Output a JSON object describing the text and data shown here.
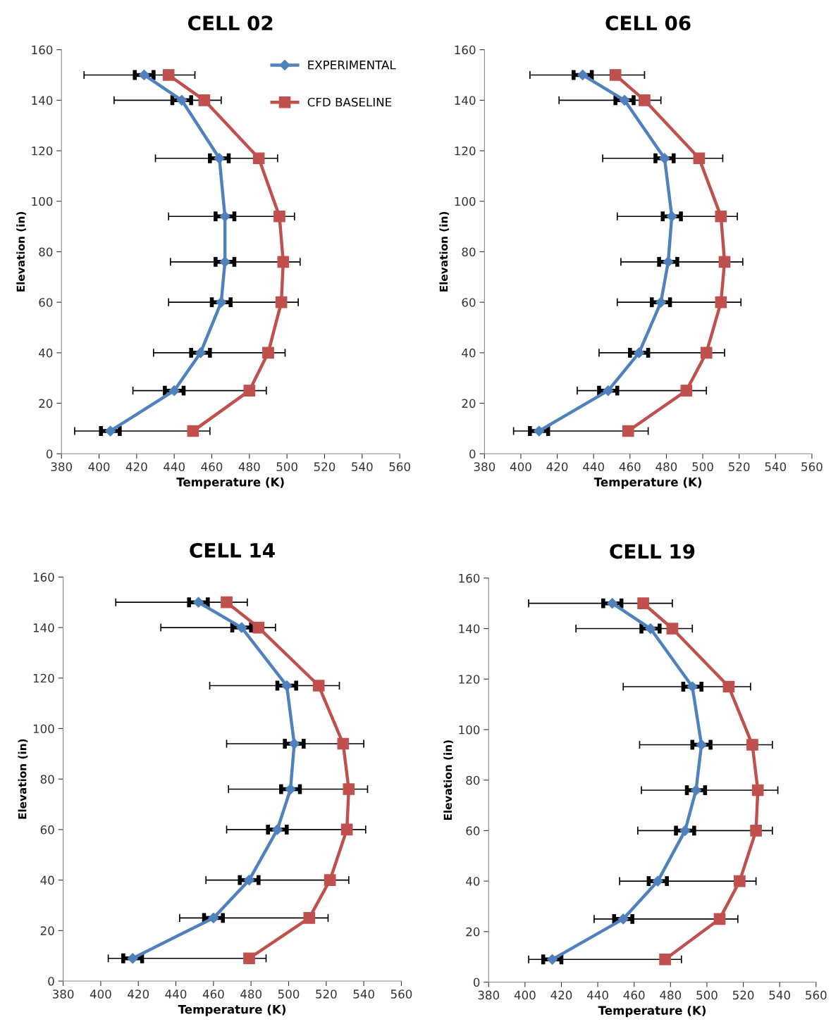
{
  "chart_data": [
    {
      "type": "line",
      "title": "CELL 02",
      "xlabel": "Temperature (K)",
      "ylabel": "Elevation (in)",
      "xlim": [
        380,
        560
      ],
      "xticks": [
        380,
        400,
        420,
        440,
        460,
        480,
        500,
        520,
        540,
        560
      ],
      "ylim": [
        0,
        160
      ],
      "yticks": [
        0,
        20,
        40,
        60,
        80,
        100,
        120,
        140,
        160
      ],
      "grid": false,
      "legend": "top right",
      "line_style": "solid",
      "series": [
        {
          "name": "EXPERIMENTAL",
          "color": "#4f81bd",
          "marker": "diamond",
          "x": [
            424,
            444,
            464,
            467,
            467,
            465,
            454,
            440,
            406
          ],
          "values": [
            150,
            140,
            117,
            94,
            76,
            60,
            40,
            25,
            9
          ],
          "xerrors": [
            5,
            5,
            5,
            5,
            5,
            5,
            5,
            5,
            5
          ]
        },
        {
          "name": "CFD BASELINE",
          "color": "#c0504d",
          "marker": "square",
          "x": [
            437,
            456,
            485,
            496,
            498,
            497,
            490,
            480,
            450
          ],
          "values": [
            150,
            140,
            117,
            94,
            76,
            60,
            40,
            25,
            9
          ],
          "xerrors": [
            [
              392,
              451
            ],
            [
              408,
              465
            ],
            [
              430,
              495
            ],
            [
              437,
              504
            ],
            [
              438,
              507
            ],
            [
              437,
              506
            ],
            [
              429,
              499
            ],
            [
              418,
              489
            ],
            [
              387,
              459
            ]
          ]
        }
      ]
    },
    {
      "type": "line",
      "title": "CELL 06",
      "xlabel": "Temperature (K)",
      "ylabel": "Elevation (in)",
      "xlim": [
        380,
        560
      ],
      "xticks": [
        380,
        400,
        420,
        440,
        460,
        480,
        500,
        520,
        540,
        560
      ],
      "ylim": [
        0,
        160
      ],
      "yticks": [
        0,
        20,
        40,
        60,
        80,
        100,
        120,
        140,
        160
      ],
      "grid": false,
      "legend": false,
      "line_style": "solid",
      "series": [
        {
          "color": "#4f81bd",
          "marker": "diamond",
          "x": [
            434,
            457,
            479,
            483,
            481,
            477,
            465,
            448,
            410
          ],
          "values": [
            150,
            140,
            117,
            94,
            76,
            60,
            40,
            25,
            9
          ],
          "xerrors": [
            5,
            5,
            5,
            5,
            5,
            5,
            5,
            5,
            5
          ]
        },
        {
          "color": "#c0504d",
          "marker": "square",
          "x": [
            452,
            468,
            498,
            510,
            512,
            510,
            502,
            491,
            459
          ],
          "values": [
            150,
            140,
            117,
            94,
            76,
            60,
            40,
            25,
            9
          ],
          "xerrors": [
            [
              405,
              468
            ],
            [
              421,
              477
            ],
            [
              445,
              511
            ],
            [
              453,
              519
            ],
            [
              455,
              522
            ],
            [
              453,
              521
            ],
            [
              443,
              512
            ],
            [
              431,
              502
            ],
            [
              396,
              470
            ]
          ]
        }
      ]
    },
    {
      "type": "line",
      "title": "CELL 14",
      "xlabel": "Temperature (K)",
      "ylabel": "Elevation (in)",
      "xlim": [
        380,
        560
      ],
      "xticks": [
        380,
        400,
        420,
        440,
        460,
        480,
        500,
        520,
        540,
        560
      ],
      "ylim": [
        0,
        160
      ],
      "yticks": [
        0,
        20,
        40,
        60,
        80,
        100,
        120,
        140,
        160
      ],
      "grid": false,
      "legend": false,
      "line_style": "solid",
      "series": [
        {
          "color": "#4f81bd",
          "marker": "diamond",
          "x": [
            452,
            475,
            499,
            503,
            501,
            494,
            479,
            460,
            417
          ],
          "values": [
            150,
            140,
            117,
            94,
            76,
            60,
            40,
            25,
            9
          ],
          "xerrors": [
            5,
            5,
            5,
            5,
            5,
            5,
            5,
            5,
            5
          ]
        },
        {
          "color": "#c0504d",
          "marker": "square",
          "x": [
            467,
            484,
            516,
            529,
            532,
            531,
            522,
            511,
            479
          ],
          "values": [
            150,
            140,
            117,
            94,
            76,
            60,
            40,
            25,
            9
          ],
          "xerrors": [
            [
              408,
              478
            ],
            [
              432,
              493
            ],
            [
              458,
              527
            ],
            [
              467,
              540
            ],
            [
              468,
              542
            ],
            [
              467,
              541
            ],
            [
              456,
              532
            ],
            [
              442,
              521
            ],
            [
              404,
              488
            ]
          ]
        }
      ]
    },
    {
      "type": "line",
      "title": "CELL 19",
      "xlabel": "Temperature (K)",
      "ylabel": "Elevation (in)",
      "xlim": [
        380,
        560
      ],
      "xticks": [
        380,
        400,
        420,
        440,
        460,
        480,
        500,
        520,
        540,
        560
      ],
      "ylim": [
        0,
        160
      ],
      "yticks": [
        0,
        20,
        40,
        60,
        80,
        100,
        120,
        140,
        160
      ],
      "grid": false,
      "legend": false,
      "line_style": "solid",
      "series": [
        {
          "color": "#4f81bd",
          "marker": "diamond",
          "x": [
            448,
            469,
            492,
            497,
            494,
            488,
            473,
            454,
            415
          ],
          "values": [
            150,
            140,
            117,
            94,
            76,
            60,
            40,
            25,
            9
          ],
          "xerrors": [
            5,
            5,
            5,
            5,
            5,
            5,
            5,
            5,
            5
          ]
        },
        {
          "color": "#c0504d",
          "marker": "square",
          "x": [
            465,
            481,
            512,
            525,
            528,
            527,
            518,
            507,
            477
          ],
          "values": [
            150,
            140,
            117,
            94,
            76,
            60,
            40,
            25,
            9
          ],
          "xerrors": [
            [
              402,
              481
            ],
            [
              428,
              492
            ],
            [
              454,
              524
            ],
            [
              463,
              536
            ],
            [
              464,
              539
            ],
            [
              462,
              536
            ],
            [
              452,
              527
            ],
            [
              438,
              517
            ],
            [
              402,
              486
            ]
          ]
        }
      ]
    }
  ]
}
